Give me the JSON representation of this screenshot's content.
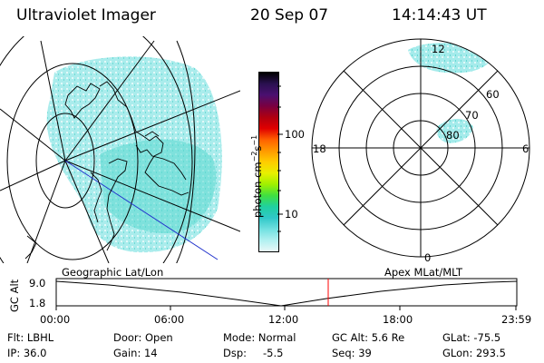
{
  "header": {
    "title": "Ultraviolet Imager",
    "date": "20 Sep 07",
    "time": "14:14:43 UT"
  },
  "colorbar": {
    "unit_label": "photon cm",
    "ticks": [
      "100",
      "10"
    ],
    "colors": [
      "#000000",
      "#2a1050",
      "#4a1070",
      "#7a0040",
      "#b00010",
      "#e00000",
      "#ff6000",
      "#ff9900",
      "#ffcc00",
      "#e8f000",
      "#a0f000",
      "#40e040",
      "#20d0a0",
      "#30c8c8",
      "#70e0e0",
      "#b0f0f0",
      "#e8f8f8"
    ]
  },
  "polar_plot": {
    "mlt_labels": [
      "12",
      "18",
      "6",
      "0"
    ],
    "mlat_labels": [
      "60",
      "70",
      "80"
    ]
  },
  "timeline": {
    "left_label": "Geographic Lat/Lon",
    "right_label": "Apex MLat/MLT",
    "axis_title": "GC Alt",
    "y_ticks": [
      "9.0",
      "1.8"
    ],
    "x_ticks": [
      "00:00",
      "06:00",
      "12:00",
      "18:00",
      "23:59"
    ],
    "marker_color": "#ff0000"
  },
  "info": {
    "row1": [
      "Flt: LBHL",
      "Door: Open",
      "Mode: Normal",
      "GC Alt: 5.6 Re",
      "GLat: -75.5"
    ],
    "row2": [
      "IP: 36.0",
      "Gain: 14",
      "Dsp:",
      "-5.5",
      "Seq: 39",
      "GLon: 293.5"
    ]
  }
}
